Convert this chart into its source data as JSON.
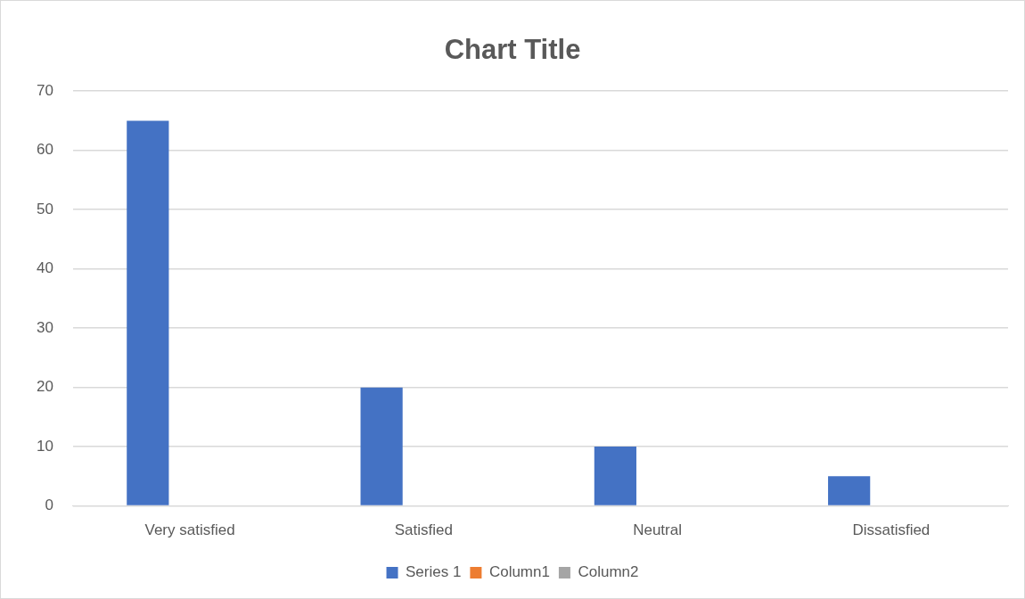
{
  "chart_data": {
    "type": "bar",
    "title": "Chart Title",
    "categories": [
      "Very satisfied",
      "Satisfied",
      "Neutral",
      "Dissatisfied"
    ],
    "series": [
      {
        "name": "Series 1",
        "color": "#4472c4",
        "values": [
          65,
          20,
          10,
          5
        ]
      },
      {
        "name": "Column1",
        "color": "#ed7d31",
        "values": [
          null,
          null,
          null,
          null
        ]
      },
      {
        "name": "Column2",
        "color": "#a5a5a5",
        "values": [
          null,
          null,
          null,
          null
        ]
      }
    ],
    "ylim": [
      0,
      70
    ],
    "yticks": [
      0,
      10,
      20,
      30,
      40,
      50,
      60,
      70
    ],
    "grid": "y",
    "legend": "bottom"
  }
}
